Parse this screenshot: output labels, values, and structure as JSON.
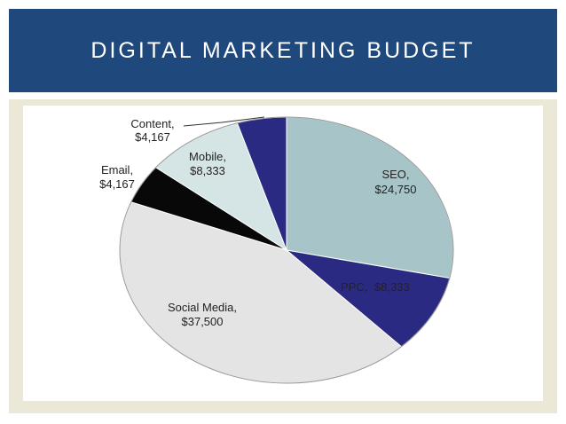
{
  "slide": {
    "title": "DIGITAL MARKETING BUDGET"
  },
  "colors": {
    "title_bar": "#1f497d",
    "band": "#ece8d7"
  },
  "chart_data": {
    "type": "pie",
    "title": "",
    "slices": [
      {
        "name": "SEO",
        "label": "SEO,",
        "value_label": "$24,750",
        "value": 24750,
        "color": "#a7c5c8"
      },
      {
        "name": "PPC",
        "label": "PPC,",
        "value_label": "$8,333",
        "value": 8333,
        "color": "#2b2a82"
      },
      {
        "name": "Social Media",
        "label": "Social Media,",
        "value_label": "$37,500",
        "value": 37500,
        "color": "#e4e4e4"
      },
      {
        "name": "Email",
        "label": "Email,",
        "value_label": "$4,167",
        "value": 4167,
        "color": "#080808"
      },
      {
        "name": "Mobile",
        "label": "Mobile,",
        "value_label": "$8,333",
        "value": 8333,
        "color": "#d5e5e6"
      },
      {
        "name": "Content",
        "label": "Content,",
        "value_label": "$4,167",
        "value": 4167,
        "color": "#2b2a82"
      }
    ]
  }
}
